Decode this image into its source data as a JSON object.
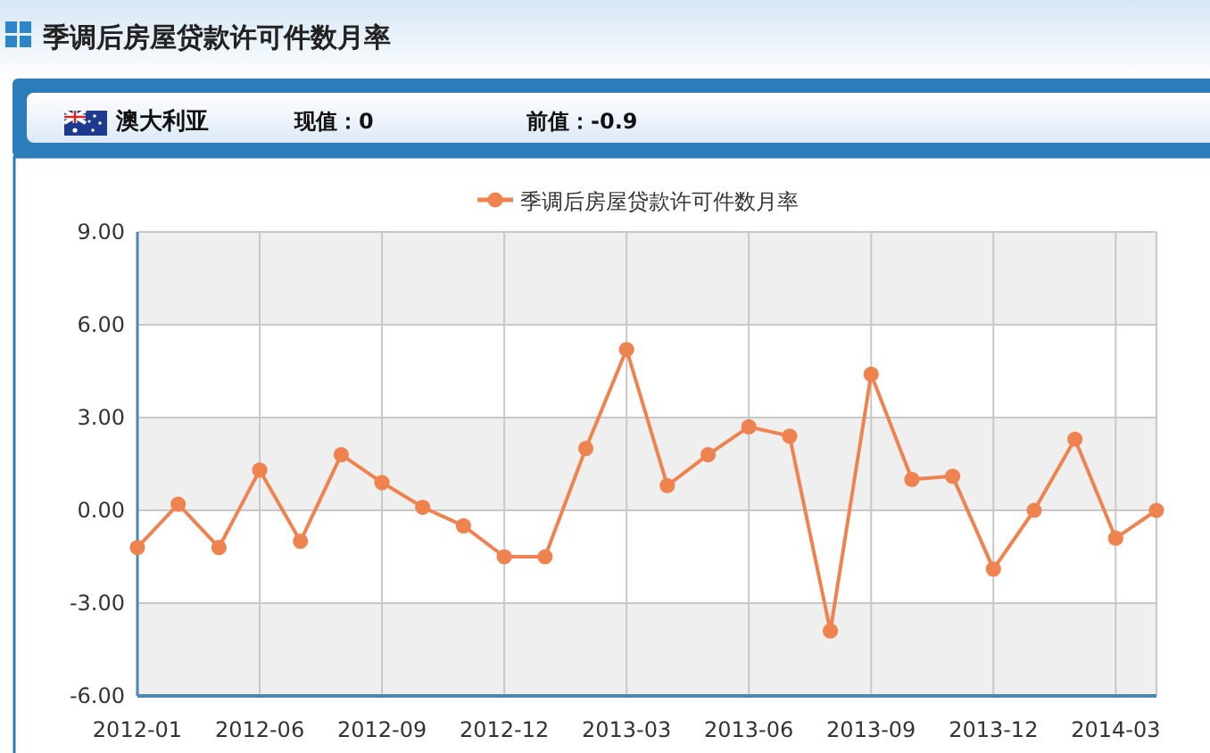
{
  "chart_data": {
    "type": "line",
    "title": "季调后房屋贷款许可件数月率",
    "subtitle": "澳大利亚",
    "annotations": [
      "现值：0",
      "前值：-0.9"
    ],
    "categories": [
      "2012-01",
      null,
      null,
      "2012-06",
      null,
      null,
      "2012-09",
      null,
      null,
      "2012-12",
      null,
      null,
      "2013-03",
      null,
      null,
      "2013-06",
      null,
      null,
      "2013-09",
      null,
      null,
      "2013-12",
      null,
      null,
      "2014-03",
      null
    ],
    "series": [
      {
        "name": "季调后房屋贷款许可件数月率",
        "color": "#ef8350",
        "values": [
          -1.2,
          0.2,
          -1.2,
          1.3,
          -1.0,
          1.8,
          0.9,
          0.1,
          -0.5,
          -1.5,
          -1.5,
          2.0,
          5.2,
          0.8,
          1.8,
          2.7,
          2.4,
          -3.9,
          4.4,
          1.0,
          1.1,
          -1.9,
          0.0,
          2.3,
          -0.9,
          0.0
        ]
      }
    ],
    "ylim": [
      -6,
      9
    ],
    "yticks": [
      {
        "value": -6,
        "label": "-6.00"
      },
      {
        "value": -3,
        "label": "-3.00"
      },
      {
        "value": 0,
        "label": "0.00"
      },
      {
        "value": 3,
        "label": "3.00"
      },
      {
        "value": 6,
        "label": "6.00"
      },
      {
        "value": 9,
        "label": "9.00"
      }
    ],
    "grid": true,
    "legend": "top",
    "marker": "circle",
    "line_style": "solid"
  }
}
